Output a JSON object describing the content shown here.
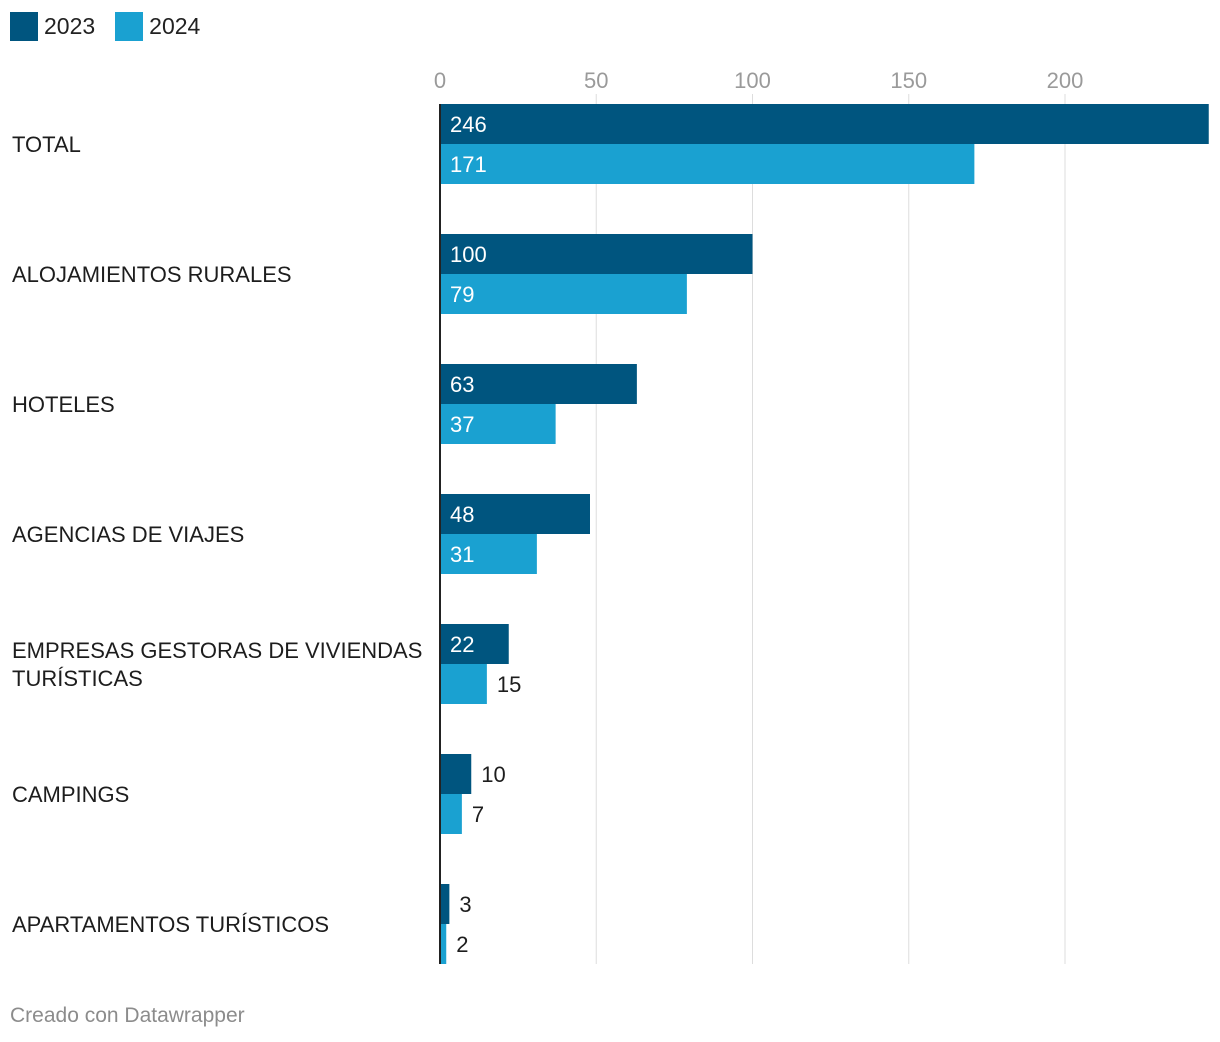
{
  "colors": {
    "2023": "#00557f",
    "2024": "#1aa1d1",
    "grid": "#dddddd",
    "axis": "#222222",
    "tick": "#9a9a9a"
  },
  "legend": [
    {
      "label": "2023",
      "color": "#00557f"
    },
    {
      "label": "2024",
      "color": "#1aa1d1"
    }
  ],
  "footer": {
    "credit": "Creado con Datawrapper"
  },
  "chart_data": {
    "type": "bar",
    "orientation": "horizontal",
    "categories": [
      "TOTAL",
      "ALOJAMIENTOS RURALES",
      "HOTELES",
      "AGENCIAS DE VIAJES",
      "EMPRESAS GESTORAS DE VIVIENDAS TURÍSTICAS",
      "CAMPINGS",
      "APARTAMENTOS TURÍSTICOS"
    ],
    "series": [
      {
        "name": "2023",
        "values": [
          246,
          100,
          63,
          48,
          22,
          10,
          3
        ]
      },
      {
        "name": "2024",
        "values": [
          171,
          79,
          37,
          31,
          15,
          7,
          2
        ]
      }
    ],
    "xticks": [
      0,
      50,
      100,
      150,
      200
    ],
    "xlim": [
      0,
      246
    ],
    "grid": true,
    "legend_position": "top-left",
    "title": "",
    "xlabel": "",
    "ylabel": ""
  }
}
